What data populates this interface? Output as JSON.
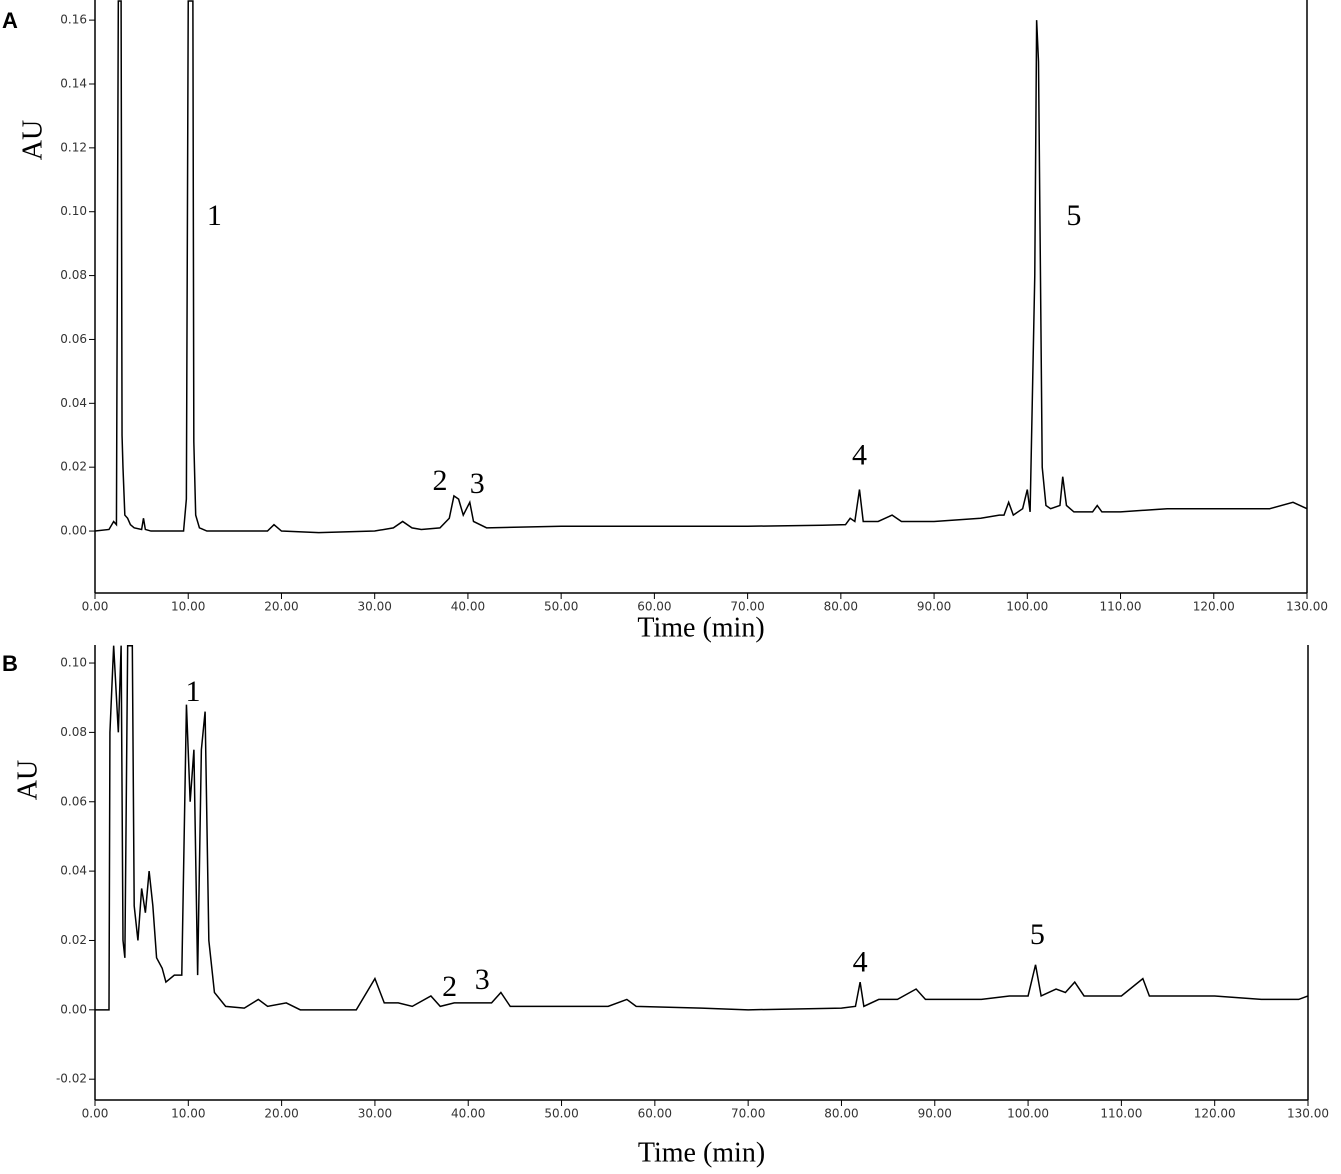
{
  "chart_data": [
    {
      "type": "line",
      "panel_label": "A",
      "ylabel": "AU",
      "xlabel": "Time (min)",
      "color": "#000000",
      "xlim": [
        0,
        130
      ],
      "ylim": [
        -0.0194,
        0.1663
      ],
      "xticks": [
        {
          "value": 0,
          "label": "0.00"
        },
        {
          "value": 10,
          "label": "10.00"
        },
        {
          "value": 20,
          "label": "20.00"
        },
        {
          "value": 30,
          "label": "30.00"
        },
        {
          "value": 40,
          "label": "40.00"
        },
        {
          "value": 50,
          "label": "50.00"
        },
        {
          "value": 60,
          "label": "60.00"
        },
        {
          "value": 70,
          "label": "70.00"
        },
        {
          "value": 80,
          "label": "80.00"
        },
        {
          "value": 90,
          "label": "90.00"
        },
        {
          "value": 100,
          "label": "100.00"
        },
        {
          "value": 110,
          "label": "110.00"
        },
        {
          "value": 120,
          "label": "120.00"
        },
        {
          "value": 130,
          "label": "130.00"
        }
      ],
      "yticks": [
        {
          "value": 0,
          "label": "0.00"
        },
        {
          "value": 0.02,
          "label": "0.02"
        },
        {
          "value": 0.04,
          "label": "0.04"
        },
        {
          "value": 0.06,
          "label": "0.06"
        },
        {
          "value": 0.08,
          "label": "0.08"
        },
        {
          "value": 0.1,
          "label": "0.10"
        },
        {
          "value": 0.12,
          "label": "0.12"
        },
        {
          "value": 0.14,
          "label": "0.14"
        },
        {
          "value": 0.16,
          "label": "0.16"
        }
      ],
      "annotations": [
        "1",
        "2",
        "3",
        "4",
        "5"
      ],
      "x": [
        0,
        1.5,
        2.0,
        2.3,
        2.5,
        2.8,
        2.9,
        3.0,
        3.2,
        3.5,
        3.8,
        4.2,
        5.0,
        5.2,
        5.4,
        6,
        9.5,
        9.8,
        10.0,
        10.5,
        10.6,
        10.8,
        11.2,
        12,
        18.5,
        19.2,
        20,
        24,
        30,
        32,
        33,
        34,
        35,
        37,
        38,
        38.5,
        39,
        39.5,
        40.2,
        40.6,
        42,
        50,
        60,
        70,
        78,
        80.5,
        81,
        81.5,
        82,
        82.4,
        84,
        85.5,
        86.5,
        90,
        95,
        97,
        97.5,
        98,
        98.5,
        99.5,
        100,
        100.3,
        100.8,
        101.0,
        101.2,
        101.6,
        102,
        102.5,
        103.5,
        103.8,
        104.2,
        105,
        107,
        107.5,
        108,
        110,
        115,
        120,
        124,
        126,
        128.5,
        130
      ],
      "values": [
        0,
        0.0005,
        0.003,
        0.002,
        0.166,
        0.166,
        0.03,
        0.02,
        0.005,
        0.004,
        0.002,
        0.001,
        0.0005,
        0.004,
        0.0005,
        0,
        0,
        0.01,
        0.166,
        0.166,
        0.028,
        0.005,
        0.001,
        0,
        0,
        0.002,
        0,
        -0.0005,
        0,
        0.001,
        0.003,
        0.001,
        0.0005,
        0.001,
        0.004,
        0.011,
        0.01,
        0.005,
        0.009,
        0.003,
        0.001,
        0.0015,
        0.0015,
        0.0015,
        0.0018,
        0.002,
        0.004,
        0.003,
        0.013,
        0.003,
        0.003,
        0.005,
        0.003,
        0.003,
        0.004,
        0.005,
        0.005,
        0.009,
        0.005,
        0.007,
        0.013,
        0.006,
        0.08,
        0.16,
        0.147,
        0.02,
        0.008,
        0.007,
        0.008,
        0.017,
        0.008,
        0.006,
        0.006,
        0.008,
        0.006,
        0.006,
        0.007,
        0.007,
        0.007,
        0.007,
        0.009,
        0.007
      ]
    },
    {
      "type": "line",
      "panel_label": "B",
      "ylabel": "AU",
      "xlabel": "Time (min)",
      "color": "#000000",
      "xlim": [
        0,
        130
      ],
      "ylim": [
        -0.026,
        0.1052
      ],
      "xticks": [
        {
          "value": 0,
          "label": "0.00"
        },
        {
          "value": 10,
          "label": "10.00"
        },
        {
          "value": 20,
          "label": "20.00"
        },
        {
          "value": 30,
          "label": "30.00"
        },
        {
          "value": 40,
          "label": "40.00"
        },
        {
          "value": 50,
          "label": "50.00"
        },
        {
          "value": 60,
          "label": "60.00"
        },
        {
          "value": 70,
          "label": "70.00"
        },
        {
          "value": 80,
          "label": "80.00"
        },
        {
          "value": 90,
          "label": "90.00"
        },
        {
          "value": 100,
          "label": "100.00"
        },
        {
          "value": 110,
          "label": "110.00"
        },
        {
          "value": 120,
          "label": "120.00"
        },
        {
          "value": 130,
          "label": "130.00"
        }
      ],
      "yticks": [
        {
          "value": -0.02,
          "label": "-0.02"
        },
        {
          "value": 0,
          "label": "0.00"
        },
        {
          "value": 0.02,
          "label": "0.02"
        },
        {
          "value": 0.04,
          "label": "0.04"
        },
        {
          "value": 0.06,
          "label": "0.06"
        },
        {
          "value": 0.08,
          "label": "0.08"
        },
        {
          "value": 0.1,
          "label": "0.10"
        }
      ],
      "annotations": [
        "1",
        "2",
        "3",
        "4",
        "5"
      ],
      "x": [
        0,
        1.5,
        1.6,
        2,
        2.5,
        2.8,
        3,
        3.2,
        3.5,
        4,
        4.2,
        4.6,
        5,
        5.4,
        5.8,
        6.2,
        6.6,
        7.2,
        7.6,
        8.5,
        9.3,
        9.8,
        10.2,
        10.6,
        11,
        11.4,
        11.8,
        12.2,
        12.8,
        14,
        16,
        17.5,
        18.5,
        20.5,
        22,
        25,
        28,
        30,
        31,
        32.5,
        34,
        36,
        37,
        38.5,
        40.5,
        41.5,
        42.5,
        43.5,
        44.5,
        50,
        55,
        57,
        58,
        65,
        70,
        80,
        81.5,
        82,
        82.4,
        84,
        86,
        88,
        89,
        95,
        98,
        100,
        100.8,
        101.4,
        103,
        104,
        105,
        106,
        110,
        112.3,
        113,
        120,
        125,
        129,
        130
      ],
      "values": [
        0,
        0,
        0.08,
        0.105,
        0.08,
        0.105,
        0.02,
        0.015,
        0.105,
        0.105,
        0.03,
        0.02,
        0.035,
        0.028,
        0.04,
        0.03,
        0.015,
        0.012,
        0.008,
        0.01,
        0.01,
        0.088,
        0.06,
        0.075,
        0.01,
        0.075,
        0.086,
        0.02,
        0.005,
        0.001,
        0.0005,
        0.003,
        0.001,
        0.002,
        0,
        0,
        0,
        0.009,
        0.002,
        0.002,
        0.001,
        0.004,
        0.001,
        0.002,
        0.002,
        0.002,
        0.002,
        0.005,
        0.001,
        0.001,
        0.001,
        0.003,
        0.001,
        0.0005,
        0,
        0.0005,
        0.001,
        0.008,
        0.001,
        0.003,
        0.003,
        0.006,
        0.003,
        0.003,
        0.004,
        0.004,
        0.013,
        0.004,
        0.006,
        0.005,
        0.008,
        0.004,
        0.004,
        0.009,
        0.004,
        0.004,
        0.003,
        0.003,
        0.004
      ]
    }
  ]
}
